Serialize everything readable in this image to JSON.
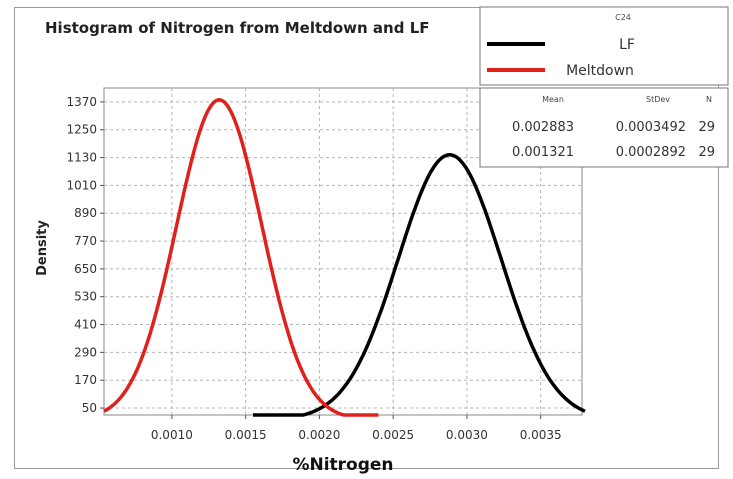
{
  "chart_data": {
    "type": "line",
    "title": "Histogram of Nitrogen from Meltdown and LF",
    "xlabel": "%Nitrogen",
    "ylabel": "Density",
    "xlim": [
      0.00054,
      0.00378
    ],
    "ylim": [
      20,
      1430
    ],
    "x_ticks": [
      0.001,
      0.0015,
      0.002,
      0.0025,
      0.003,
      0.0035
    ],
    "x_tick_labels": [
      "0.0010",
      "0.0015",
      "0.0020",
      "0.0025",
      "0.0030",
      "0.0035"
    ],
    "y_ticks": [
      50,
      170,
      290,
      410,
      530,
      650,
      770,
      890,
      1010,
      1130,
      1250,
      1370
    ],
    "y_tick_labels": [
      "50",
      "170",
      "290",
      "410",
      "530",
      "650",
      "770",
      "890",
      "1010",
      "1130",
      "1250",
      "1370"
    ],
    "grid": true,
    "legend": {
      "position": "top-right",
      "title": "C24",
      "entries": [
        {
          "label": "LF",
          "color": "#000000"
        },
        {
          "label": "Meltdown",
          "color": "#e0201b"
        }
      ]
    },
    "stats_table": {
      "headers": [
        "Mean",
        "StDev",
        "N"
      ],
      "rows": [
        [
          "0.002883",
          "0.0003492",
          "29"
        ],
        [
          "0.001321",
          "0.0002892",
          "29"
        ]
      ]
    },
    "series": [
      {
        "name": "LF",
        "color": "#000000",
        "distribution": "normal",
        "mean": 0.002883,
        "stdev": 0.0003492,
        "peak_density": 1142,
        "x_range": [
          0.00155,
          0.0038
        ]
      },
      {
        "name": "Meltdown",
        "color": "#e0201b",
        "distribution": "normal",
        "mean": 0.001321,
        "stdev": 0.0002892,
        "peak_density": 1379,
        "x_range": [
          0.00054,
          0.0024
        ]
      }
    ]
  }
}
